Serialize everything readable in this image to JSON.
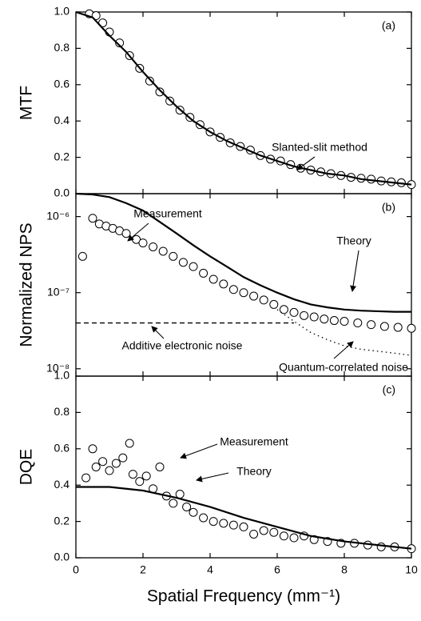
{
  "chart_data": [
    {
      "type": "line",
      "ylabel": "MTF",
      "xlim": [
        0,
        10
      ],
      "xticks": [
        0,
        2,
        4,
        6,
        8,
        10
      ],
      "ylim": [
        0,
        1
      ],
      "yticks": [
        {
          "value": 0,
          "label": "0.0"
        },
        0.2,
        0.4,
        0.6,
        0.8,
        {
          "value": 1,
          "label": "1.0"
        }
      ],
      "annotations": [
        "(a)",
        "Slanted-slit method"
      ],
      "series": [
        {
          "style": "circle",
          "color": "#000000",
          "x": [
            0.4,
            0.6,
            0.8,
            1.0,
            1.3,
            1.6,
            1.9,
            2.2,
            2.5,
            2.8,
            3.1,
            3.4,
            3.7,
            4.0,
            4.3,
            4.6,
            4.9,
            5.2,
            5.5,
            5.8,
            6.1,
            6.4,
            6.7,
            7.0,
            7.3,
            7.6,
            7.9,
            8.2,
            8.5,
            8.8,
            9.1,
            9.4,
            9.7,
            10.0
          ],
          "values": [
            0.99,
            0.98,
            0.94,
            0.89,
            0.83,
            0.76,
            0.69,
            0.62,
            0.56,
            0.51,
            0.46,
            0.42,
            0.38,
            0.34,
            0.31,
            0.28,
            0.26,
            0.24,
            0.21,
            0.19,
            0.18,
            0.16,
            0.14,
            0.13,
            0.12,
            0.11,
            0.1,
            0.09,
            0.085,
            0.08,
            0.07,
            0.065,
            0.06,
            0.05
          ]
        },
        {
          "style": "solid",
          "color": "#000000",
          "x": [
            0,
            0.5,
            1,
            1.5,
            2,
            2.5,
            3,
            3.5,
            4,
            4.5,
            5,
            5.5,
            6,
            6.5,
            7,
            7.5,
            8,
            8.5,
            9,
            9.5,
            10
          ],
          "values": [
            1.0,
            0.97,
            0.87,
            0.78,
            0.67,
            0.57,
            0.48,
            0.4,
            0.34,
            0.29,
            0.25,
            0.21,
            0.18,
            0.15,
            0.13,
            0.11,
            0.1,
            0.08,
            0.07,
            0.06,
            0.05
          ]
        }
      ]
    },
    {
      "type": "line",
      "ylabel": "Normalized NPS",
      "xlim": [
        0,
        10
      ],
      "xticks": [
        0,
        2,
        4,
        6,
        8,
        10
      ],
      "log": true,
      "ylim": [
        8e-09,
        2e-06
      ],
      "yticks": [
        {
          "value": 1e-08,
          "label": "10⁻⁸"
        },
        {
          "value": 1e-07,
          "label": "10⁻⁷"
        },
        {
          "value": 1e-06,
          "label": "10⁻⁶"
        }
      ],
      "annotations": [
        "(b)",
        "Measurement",
        "Theory",
        "Additive electronic noise",
        "Quantum-correlated noise"
      ],
      "series": [
        {
          "style": "circle",
          "color": "#000000",
          "x": [
            0.2,
            0.5,
            0.7,
            0.9,
            1.1,
            1.3,
            1.5,
            1.8,
            2.0,
            2.3,
            2.6,
            2.9,
            3.2,
            3.5,
            3.8,
            4.1,
            4.4,
            4.7,
            5.0,
            5.3,
            5.6,
            5.9,
            6.2,
            6.5,
            6.8,
            7.1,
            7.4,
            7.7,
            8.0,
            8.4,
            8.8,
            9.2,
            9.6,
            10.0
          ],
          "values": [
            3e-07,
            9.5e-07,
            8e-07,
            7.5e-07,
            7e-07,
            6.5e-07,
            6e-07,
            5e-07,
            4.5e-07,
            4e-07,
            3.5e-07,
            3e-07,
            2.5e-07,
            2.2e-07,
            1.8e-07,
            1.5e-07,
            1.3e-07,
            1.1e-07,
            1e-07,
            9e-08,
            8e-08,
            7e-08,
            6e-08,
            5.5e-08,
            5e-08,
            4.8e-08,
            4.5e-08,
            4.3e-08,
            4.2e-08,
            4e-08,
            3.8e-08,
            3.6e-08,
            3.5e-08,
            3.4e-08
          ]
        },
        {
          "style": "solid",
          "color": "#000000",
          "x": [
            0,
            0.5,
            1,
            1.5,
            2,
            2.5,
            3,
            3.5,
            4,
            4.5,
            5,
            5.5,
            6,
            6.5,
            7,
            7.5,
            8,
            8.5,
            9,
            9.5,
            10
          ],
          "values": [
            2e-06,
            1.95e-06,
            1.8e-06,
            1.5e-06,
            1.2e-06,
            8.5e-07,
            6e-07,
            4.2e-07,
            3e-07,
            2.2e-07,
            1.6e-07,
            1.25e-07,
            1e-07,
            8.2e-08,
            7e-08,
            6.4e-08,
            6e-08,
            5.8e-08,
            5.7e-08,
            5.6e-08,
            5.6e-08
          ]
        },
        {
          "style": "dashed",
          "color": "#000000",
          "x": [
            0,
            6.5
          ],
          "values": [
            4e-08,
            4e-08
          ]
        },
        {
          "style": "dotted",
          "color": "#000000",
          "x": [
            6,
            6.5,
            7,
            7.5,
            8,
            8.5,
            9,
            9.5,
            10
          ],
          "values": [
            6e-08,
            4.2e-08,
            3e-08,
            2.4e-08,
            2e-08,
            1.8e-08,
            1.7e-08,
            1.6e-08,
            1.5e-08
          ]
        }
      ]
    },
    {
      "type": "line",
      "ylabel": "DQE",
      "xlabel": "Spatial Frequency (mm⁻¹)",
      "xlim": [
        0,
        10
      ],
      "xticks": [
        0,
        2,
        4,
        6,
        8,
        10
      ],
      "ylim": [
        0,
        1
      ],
      "yticks": [
        {
          "value": 0,
          "label": "0.0"
        },
        0.2,
        0.4,
        0.6,
        0.8,
        {
          "value": 1,
          "label": "1.0"
        }
      ],
      "annotations": [
        "(c)",
        "Measurement",
        "Theory"
      ],
      "series": [
        {
          "style": "circle",
          "color": "#000000",
          "x": [
            0.3,
            0.5,
            0.6,
            0.8,
            1.0,
            1.2,
            1.4,
            1.6,
            1.7,
            1.9,
            2.1,
            2.3,
            2.5,
            2.7,
            2.9,
            3.1,
            3.3,
            3.5,
            3.8,
            4.1,
            4.4,
            4.7,
            5.0,
            5.3,
            5.6,
            5.9,
            6.2,
            6.5,
            6.8,
            7.1,
            7.5,
            7.9,
            8.3,
            8.7,
            9.1,
            9.5,
            10.0
          ],
          "values": [
            0.44,
            0.6,
            0.5,
            0.53,
            0.48,
            0.52,
            0.55,
            0.63,
            0.46,
            0.42,
            0.45,
            0.38,
            0.5,
            0.34,
            0.3,
            0.35,
            0.28,
            0.25,
            0.22,
            0.2,
            0.19,
            0.18,
            0.17,
            0.13,
            0.15,
            0.14,
            0.12,
            0.11,
            0.12,
            0.1,
            0.09,
            0.08,
            0.08,
            0.07,
            0.06,
            0.06,
            0.05
          ]
        },
        {
          "style": "solid",
          "color": "#000000",
          "x": [
            0,
            1,
            2,
            3,
            4,
            5,
            6,
            7,
            8,
            9,
            10
          ],
          "values": [
            0.39,
            0.39,
            0.37,
            0.33,
            0.28,
            0.22,
            0.17,
            0.12,
            0.09,
            0.07,
            0.05
          ]
        }
      ]
    }
  ]
}
